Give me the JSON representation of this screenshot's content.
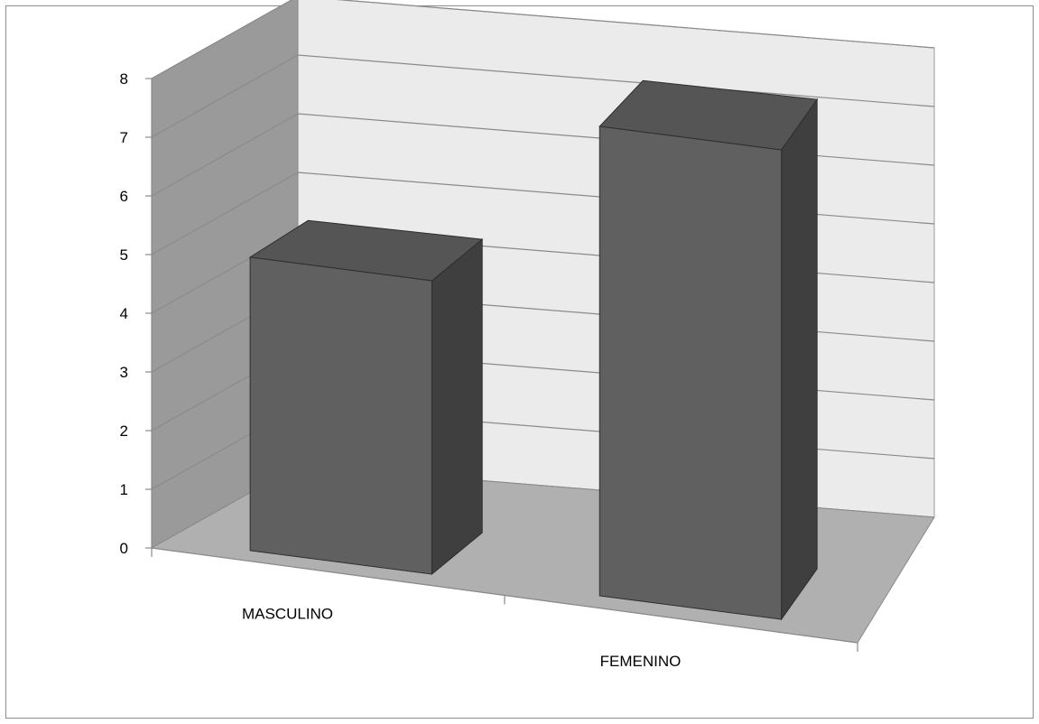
{
  "chart_data": {
    "type": "bar",
    "categories": [
      "MASCULINO",
      "FEMENINO"
    ],
    "series": [
      {
        "values": [
          5,
          8
        ]
      }
    ],
    "yticks": [
      0,
      1,
      2,
      3,
      4,
      5,
      6,
      7,
      8
    ],
    "ylim": [
      0,
      8
    ],
    "grid": true,
    "style": "3d-column",
    "colors": {
      "bar_front": "#606060",
      "bar_top": "#555555",
      "bar_side": "#3f3f3f",
      "back_wall": "#ebebeb",
      "side_wall": "#9a9a9a",
      "floor": "#b0b0b0",
      "grid_line": "#8a8a8a"
    }
  }
}
